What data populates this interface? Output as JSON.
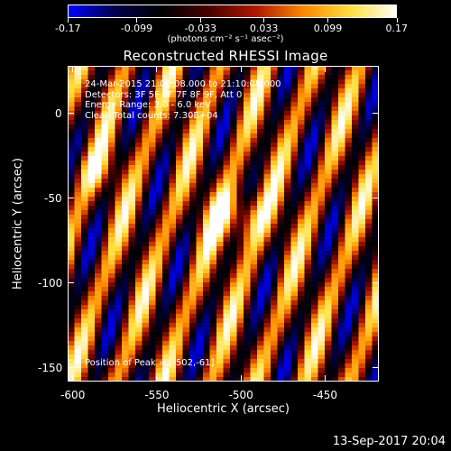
{
  "colorbar": {
    "ticks": [
      "-0.17",
      "-0.099",
      "-0.033",
      "0.033",
      "0.099",
      "0.17"
    ],
    "tick_values": [
      -0.17,
      -0.099,
      -0.033,
      0.033,
      0.099,
      0.17
    ],
    "range": [
      -0.17,
      0.17
    ],
    "units": "(photons cm⁻² s⁻¹ asec⁻²)",
    "colormap": [
      "#0000ff",
      "#00004a",
      "#000000",
      "#4a0000",
      "#b01800",
      "#ff8800",
      "#ffe040",
      "#ffffff"
    ]
  },
  "chart_data": {
    "type": "heatmap",
    "title": "Reconstructed RHESSI Image",
    "xlabel": "Heliocentric X (arcsec)",
    "ylabel": "Heliocentric Y (arcsec)",
    "xlim": [
      -603,
      -418
    ],
    "ylim": [
      -158,
      28
    ],
    "x_ticks": [
      -600,
      -550,
      -500,
      -450
    ],
    "y_ticks": [
      0,
      -50,
      -100,
      -150
    ],
    "x_tick_labels": [
      "-600",
      "-550",
      "-500",
      "-450"
    ],
    "y_tick_labels": [
      "0",
      "-50",
      "-100",
      "-150"
    ],
    "pattern": "diagonal stripes with bright sources near peak",
    "peak": [
      -502,
      -61
    ],
    "annotations": {
      "time": "24-Mar-2015 21:00:08.000 to 21:10:08.000",
      "detectors": "Detectors: 3F 5F 6F 7F 8F 9F, Att 0",
      "energy": "Energy Range: 3.0 - 6.0 keV",
      "method": "Clean    Total counts: 7.30E+04",
      "peak_text": "Position of Peak = [-502,-61]"
    }
  },
  "timestamp": "13-Sep-2017 20:04"
}
